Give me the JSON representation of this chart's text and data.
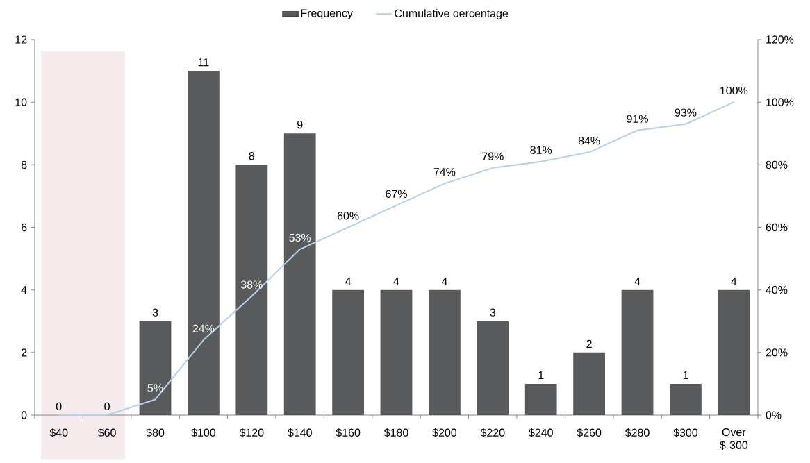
{
  "chart_data": {
    "type": "bar",
    "categories": [
      "$40",
      "$60",
      "$80",
      "$100",
      "$120",
      "$140",
      "$160",
      "$180",
      "$200",
      "$220",
      "$240",
      "$260",
      "$280",
      "$300",
      "Over $ 300"
    ],
    "series": [
      {
        "name": "Frequency",
        "color": "#595a5c",
        "values": [
          0,
          0,
          3,
          11,
          8,
          9,
          4,
          4,
          4,
          3,
          1,
          2,
          4,
          1,
          4
        ],
        "value_labels": [
          "0",
          "0",
          "3",
          "11",
          "8",
          "9",
          "4",
          "4",
          "4",
          "3",
          "1",
          "2",
          "4",
          "1",
          "4"
        ]
      },
      {
        "name": "Cumulative oercentage",
        "type": "line",
        "axis": "y2",
        "color": "#b4d0ea",
        "values": [
          0,
          0,
          5,
          24,
          38,
          53,
          60,
          67,
          74,
          79,
          81,
          84,
          91,
          93,
          100
        ],
        "value_labels": [
          null,
          null,
          "5%",
          "24%",
          "38%",
          "53%",
          "60%",
          "67%",
          "74%",
          "79%",
          "81%",
          "84%",
          "91%",
          "93%",
          "100%"
        ]
      }
    ],
    "ylim": [
      0,
      12
    ],
    "yticks": [
      0,
      2,
      4,
      6,
      8,
      10,
      12
    ],
    "y2lim": [
      0,
      120
    ],
    "y2ticks": [
      {
        "value": 0,
        "label": "0%"
      },
      {
        "value": 20,
        "label": "20%"
      },
      {
        "value": 40,
        "label": "40%"
      },
      {
        "value": 60,
        "label": "60%"
      },
      {
        "value": 80,
        "label": "80%"
      },
      {
        "value": 100,
        "label": "100%"
      },
      {
        "value": 120,
        "label": "120%"
      }
    ],
    "bands": [
      {
        "axis": "x",
        "from": "$40",
        "to": "$60",
        "color": "#f5eaec"
      }
    ],
    "legend": "top",
    "marker": "none"
  }
}
